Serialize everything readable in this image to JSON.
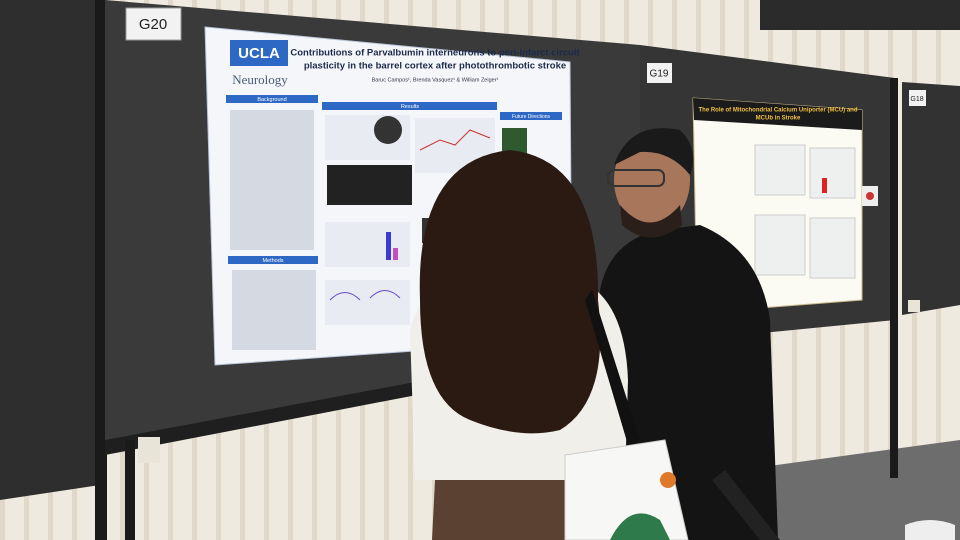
{
  "signs": {
    "left": "G20",
    "middle": "G19",
    "right": "G18"
  },
  "poster_left": {
    "logo": "UCLA",
    "department": "Neurology",
    "title_lines": [
      "Contributions of Parvalbumin interneurons to peri-infarct circuit",
      "plasticity in the barrel cortex after photothrombotic stroke"
    ],
    "authors": "Baruc Campos¹, Brenda Vasquez¹ & William Zeiger¹",
    "sections": [
      "Background",
      "Results",
      "Future Directions",
      "Methods"
    ]
  },
  "poster_right": {
    "title_lines": [
      "The Role of Mitochondrial Calcium Uniporter (MCU) and",
      "MCUb in Stroke"
    ]
  }
}
